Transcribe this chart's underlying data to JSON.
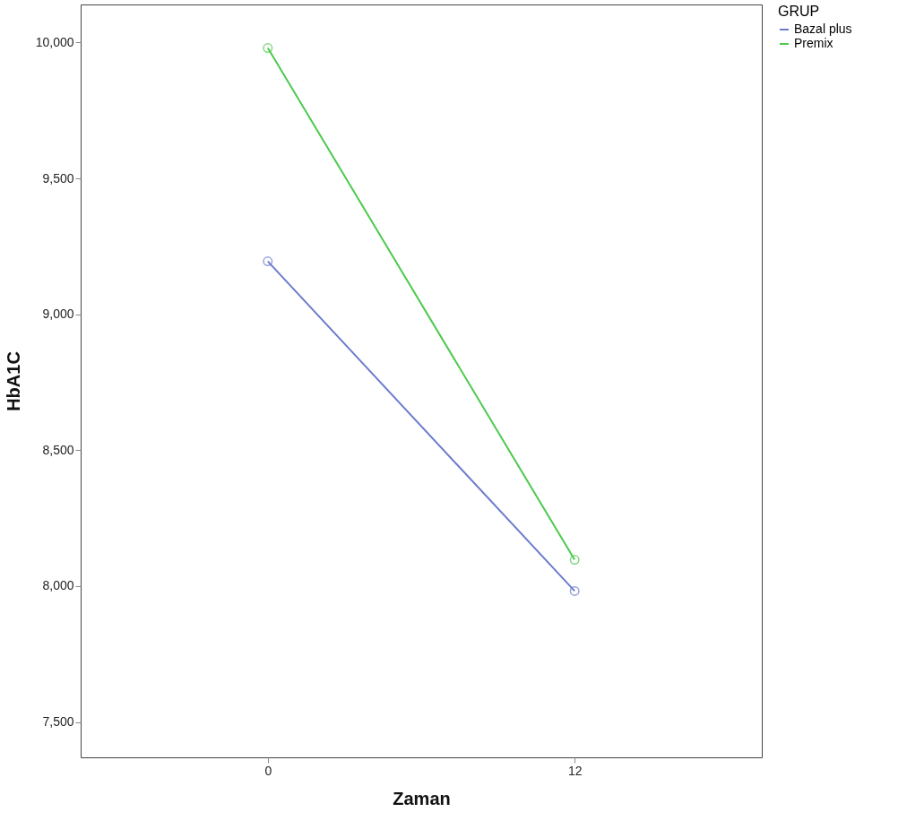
{
  "chart_data": {
    "type": "line",
    "xlabel": "Zaman",
    "ylabel": "HbA1C",
    "legend_title": "GRUP",
    "categories": [
      "0",
      "12"
    ],
    "series": [
      {
        "name": "Bazal plus",
        "color": "#6b7bcc",
        "values": [
          9195,
          7982
        ]
      },
      {
        "name": "Premix",
        "color": "#4cc94c",
        "values": [
          9980,
          8097
        ]
      }
    ],
    "ylim": [
      7370,
      10140
    ],
    "yticks": [
      {
        "value": 7500,
        "label": "7,500"
      },
      {
        "value": 8000,
        "label": "8,000"
      },
      {
        "value": 8500,
        "label": "8,500"
      },
      {
        "value": 9000,
        "label": "9,000"
      },
      {
        "value": 9500,
        "label": "9,500"
      },
      {
        "value": 10000,
        "label": "10,000"
      }
    ],
    "marker": "circle",
    "line_style": "solid",
    "grid": false,
    "legend": "top right"
  }
}
